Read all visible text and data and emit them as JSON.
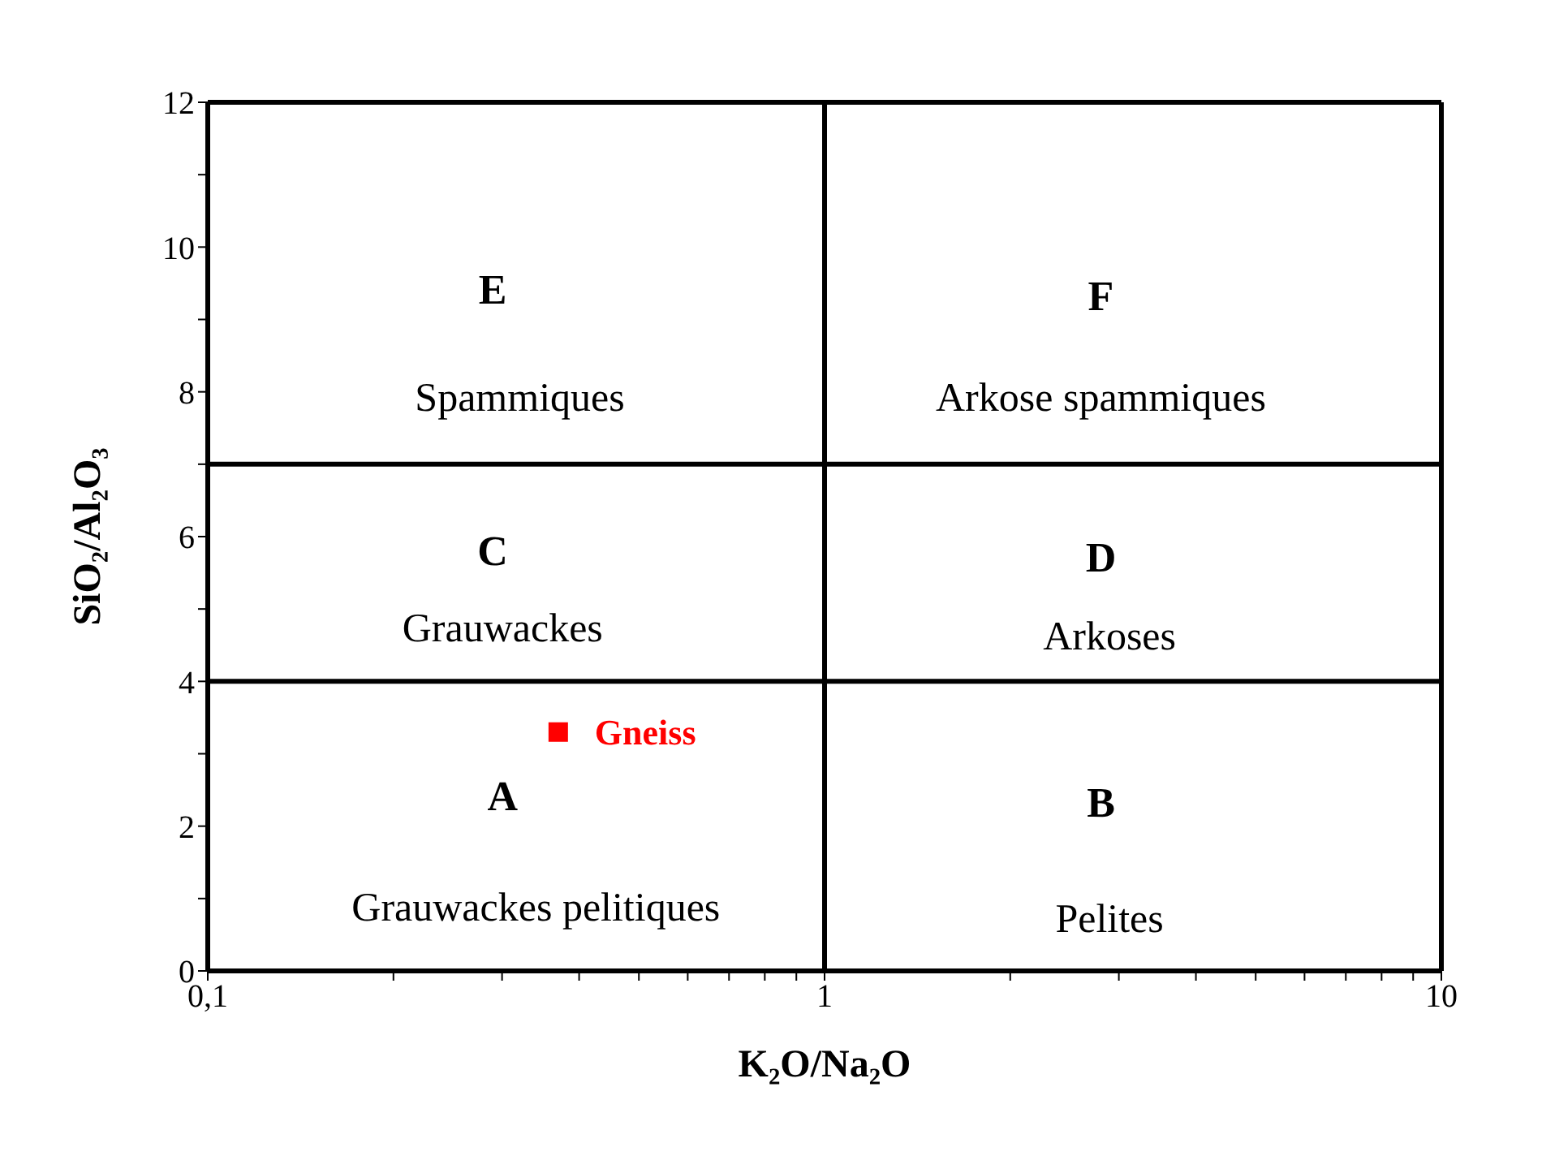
{
  "chart_data": {
    "type": "scatter",
    "xlabel": "K₂O/Na₂O",
    "ylabel": "SiO₂/Al₂O₃",
    "log": "x",
    "xlim": [
      0.1,
      10
    ],
    "ylim": [
      0,
      12
    ],
    "xticks": [
      {
        "value": 0.1,
        "label": "0,1"
      },
      {
        "value": 0.2,
        "label": null
      },
      {
        "value": 0.3,
        "label": null
      },
      {
        "value": 0.4,
        "label": null
      },
      {
        "value": 0.5,
        "label": null
      },
      {
        "value": 0.6,
        "label": null
      },
      {
        "value": 0.7,
        "label": null
      },
      {
        "value": 0.8,
        "label": null
      },
      {
        "value": 0.9,
        "label": null
      },
      1,
      {
        "value": 2,
        "label": null
      },
      {
        "value": 3,
        "label": null
      },
      {
        "value": 4,
        "label": null
      },
      {
        "value": 5,
        "label": null
      },
      {
        "value": 6,
        "label": null
      },
      {
        "value": 7,
        "label": null
      },
      {
        "value": 8,
        "label": null
      },
      {
        "value": 9,
        "label": null
      },
      10
    ],
    "yticks": [
      0,
      {
        "value": 1,
        "label": null
      },
      2,
      {
        "value": 3,
        "label": null
      },
      4,
      {
        "value": 5,
        "label": null
      },
      6,
      {
        "value": 7,
        "label": null
      },
      8,
      {
        "value": 9,
        "label": null
      },
      10,
      {
        "value": 11,
        "label": null
      },
      12
    ],
    "grid": false,
    "legend": false,
    "marker": "square",
    "series": [
      {
        "name": "Gneiss",
        "color": "#ff0000",
        "x": [
          0.37
        ],
        "values": [
          3.3
        ]
      }
    ],
    "ref_lines": [
      {
        "axis": "x",
        "value": 1,
        "color": "#000000"
      },
      {
        "axis": "y",
        "value": 4,
        "color": "#000000"
      },
      {
        "axis": "y",
        "value": 7,
        "color": "#000000"
      }
    ],
    "annotations": [
      "E",
      "Spammiques",
      "F",
      "Arkose spammiques",
      "C",
      "Grauwackes",
      "D",
      "Arkoses",
      "A",
      "Grauwackes pelitiques",
      "B",
      "Pelites"
    ]
  }
}
